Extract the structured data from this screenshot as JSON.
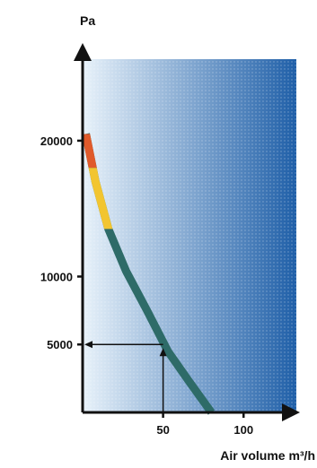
{
  "chart_data": {
    "type": "line",
    "ylabel": "Pa",
    "xlabel": "Air volume m³/h",
    "xlim": [
      0,
      130
    ],
    "ylim": [
      0,
      26000
    ],
    "x_ticks": [
      50,
      100
    ],
    "y_ticks": [
      5000,
      10000,
      20000
    ],
    "background_gradient": [
      "#e8f2fa",
      "#1f5fa8"
    ],
    "curve_color": "#2e6b68",
    "zone_colors": [
      "#2e6b68",
      "#f2c530",
      "#e05a2b"
    ],
    "series": [
      {
        "points": [
          [
            2,
            20500
          ],
          [
            8,
            17000
          ],
          [
            16,
            13500
          ],
          [
            27,
            10400
          ],
          [
            40,
            7500
          ],
          [
            53,
            4500
          ],
          [
            66,
            2300
          ],
          [
            80,
            0
          ]
        ],
        "zones": [
          {
            "color": "#e05a2b",
            "y_from": 18000,
            "y_to": 20500
          },
          {
            "color": "#f2c530",
            "y_from": 13500,
            "y_to": 18000
          },
          {
            "color": "#2e6b68",
            "y_from": 0,
            "y_to": 13500
          }
        ]
      }
    ],
    "annotation": {
      "reading_x": 50,
      "reading_y": 5000
    },
    "axis_arrows": true
  }
}
